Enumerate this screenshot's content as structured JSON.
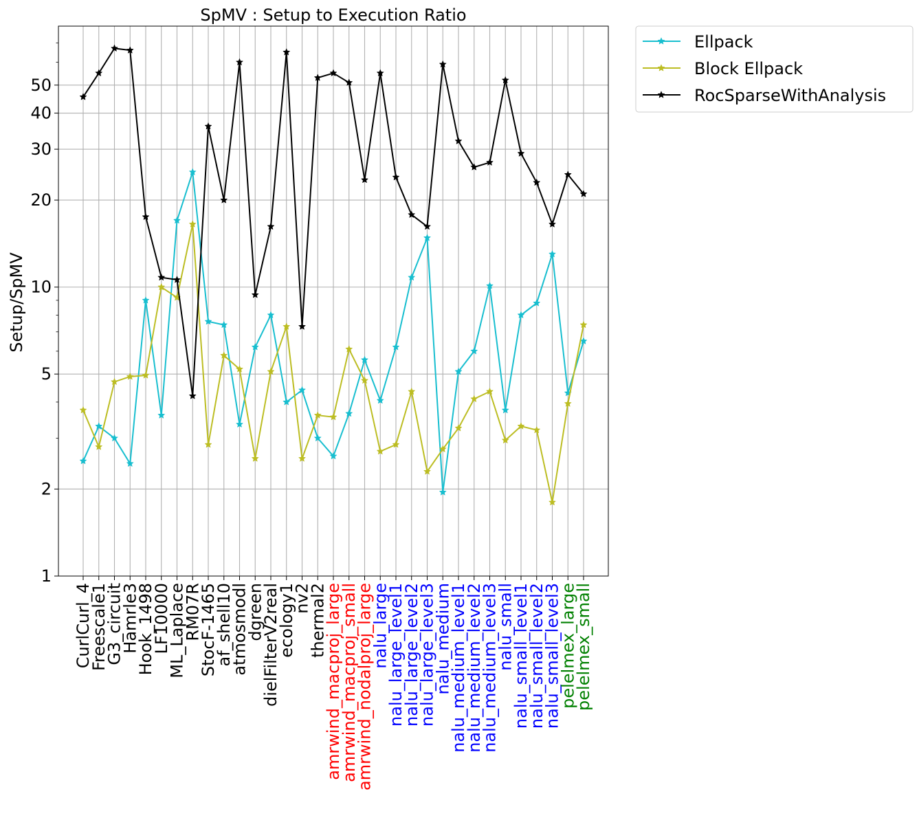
{
  "chart_data": {
    "type": "line",
    "title": "SpMV : Setup to Execution Ratio",
    "xlabel": "",
    "ylabel": "Setup/SpMV",
    "yscale": "log",
    "ylim": [
      1,
      80
    ],
    "yticks": [
      {
        "value": 1,
        "label": "1"
      },
      {
        "value": 2,
        "label": "2"
      },
      {
        "value": 5,
        "label": "5"
      },
      {
        "value": 10,
        "label": "10"
      },
      {
        "value": 20,
        "label": "20"
      },
      {
        "value": 30,
        "label": "30"
      },
      {
        "value": 40,
        "label": "40"
      },
      {
        "value": 50,
        "label": "50"
      }
    ],
    "minor_yticks": [
      3,
      4,
      6,
      7,
      8,
      9,
      60,
      70
    ],
    "grid": true,
    "legend_position": "outside-top-right",
    "categories": [
      "CurlCurl_4",
      "Freescale1",
      "G3_circuit",
      "Hamrle3",
      "Hook_1498",
      "LF10000",
      "ML_Laplace",
      "RM07R",
      "StocF-1465",
      "af_shell10",
      "atmosmodl",
      "dgreen",
      "dielFilterV2real",
      "ecology1",
      "nv2",
      "thermal2",
      "amrwind_macproj_large",
      "amrwind_macproj_small",
      "amrwind_nodalproj_large",
      "nalu_large",
      "nalu_large_level1",
      "nalu_large_level2",
      "nalu_large_level3",
      "nalu_medium",
      "nalu_medium_level1",
      "nalu_medium_level2",
      "nalu_medium_level3",
      "nalu_small",
      "nalu_small_level1",
      "nalu_small_level2",
      "nalu_small_level3",
      "pelelmex_large",
      "pelelmex_small"
    ],
    "category_colors": [
      "#000000",
      "#000000",
      "#000000",
      "#000000",
      "#000000",
      "#000000",
      "#000000",
      "#000000",
      "#000000",
      "#000000",
      "#000000",
      "#000000",
      "#000000",
      "#000000",
      "#000000",
      "#000000",
      "#ff0000",
      "#ff0000",
      "#ff0000",
      "#0000ff",
      "#0000ff",
      "#0000ff",
      "#0000ff",
      "#0000ff",
      "#0000ff",
      "#0000ff",
      "#0000ff",
      "#0000ff",
      "#0000ff",
      "#0000ff",
      "#0000ff",
      "#008000",
      "#008000"
    ],
    "series": [
      {
        "name": "Ellpack",
        "color": "#17becf",
        "marker": "star",
        "values": [
          2.5,
          3.3,
          3.0,
          2.45,
          9.0,
          3.6,
          17.0,
          25.0,
          7.6,
          7.4,
          3.35,
          6.2,
          8.0,
          4.0,
          4.4,
          3.0,
          2.6,
          3.65,
          5.6,
          4.05,
          6.2,
          10.8,
          14.8,
          1.95,
          5.1,
          6.0,
          10.1,
          3.75,
          8.0,
          8.8,
          13.0,
          4.3,
          6.5
        ],
        "markers": [
          2.5,
          3.3,
          3.0,
          2.45,
          9.0,
          3.6,
          17.0,
          25.0,
          7.6,
          7.4,
          3.35,
          6.2,
          8.0,
          4.0,
          4.4,
          3.0,
          2.6,
          3.65,
          5.6,
          4.05,
          6.2,
          10.8,
          14.8,
          1.95,
          5.1,
          6.0,
          10.1,
          3.75,
          8.0,
          8.8,
          13.0,
          4.3,
          6.5
        ]
      },
      {
        "name": "Block Ellpack",
        "color": "#bcbd22",
        "marker": "star",
        "values": [
          3.75,
          2.8,
          4.7,
          4.9,
          4.95,
          10.0,
          9.2,
          16.5,
          2.85,
          5.8,
          5.2,
          2.55,
          5.1,
          7.3,
          2.55,
          3.6,
          3.55,
          6.1,
          4.75,
          2.7,
          2.85,
          4.35,
          2.3,
          2.75,
          3.25,
          4.1,
          4.35,
          2.95,
          3.3,
          3.2,
          1.8,
          3.95,
          7.4
        ],
        "markers": [
          3.75,
          2.8,
          4.7,
          4.9,
          4.95,
          10.0,
          9.2,
          16.5,
          2.85,
          5.8,
          5.2,
          2.55,
          5.1,
          7.3,
          2.55,
          3.6,
          3.55,
          6.1,
          4.75,
          2.7,
          2.85,
          4.35,
          2.3,
          2.75,
          3.25,
          4.1,
          4.35,
          2.95,
          3.3,
          3.2,
          1.8,
          3.95,
          7.4
        ]
      },
      {
        "name": "RocSparseWithAnalysis",
        "color": "#000000",
        "marker": "star",
        "values": [
          45.5,
          55.0,
          67.0,
          66.0,
          17.5,
          10.8,
          10.6,
          4.2,
          36.0,
          20.0,
          60.0,
          9.4,
          16.2,
          65.0,
          7.3,
          53.0,
          55.0,
          51.0,
          23.5,
          55.0,
          24.0,
          17.8,
          16.2,
          59.0,
          32.0,
          26.0,
          27.0,
          52.0,
          29.0,
          23.0,
          16.5,
          24.5,
          21.0
        ],
        "markers": [
          45.5,
          55.0,
          67.0,
          66.0,
          17.5,
          10.8,
          10.6,
          4.2,
          36.0,
          20.0,
          60.0,
          9.4,
          16.2,
          65.0,
          7.3,
          53.0,
          55.0,
          51.0,
          23.5,
          55.0,
          24.0,
          17.8,
          16.2,
          59.0,
          32.0,
          26.0,
          27.0,
          52.0,
          29.0,
          23.0,
          16.5,
          24.5,
          21.0
        ]
      }
    ]
  }
}
